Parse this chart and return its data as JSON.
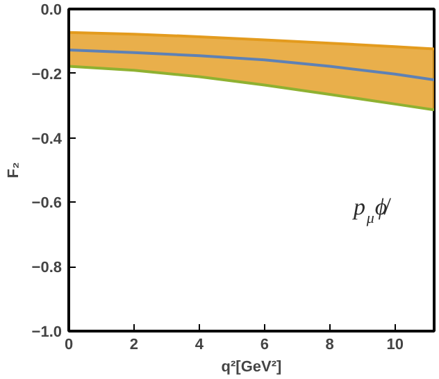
{
  "chart_data": {
    "type": "line",
    "xlabel": "q²[GeV²]",
    "ylabel": "F₂",
    "annotations": [
      "p$_{μ}$ϕ̸"
    ],
    "x": [
      0,
      2,
      4,
      6,
      8,
      10,
      11.2
    ],
    "series": [
      {
        "color": "#e39b1e",
        "values": [
          -0.073,
          -0.078,
          -0.086,
          -0.096,
          -0.106,
          -0.117,
          -0.124
        ]
      },
      {
        "color": "#5e81b5",
        "values": [
          -0.127,
          -0.135,
          -0.145,
          -0.158,
          -0.178,
          -0.202,
          -0.22
        ],
        "lower": [
          -0.178,
          -0.19,
          -0.21,
          -0.236,
          -0.265,
          -0.295,
          -0.313
        ],
        "upper": [
          -0.073,
          -0.078,
          -0.086,
          -0.096,
          -0.106,
          -0.117,
          -0.124
        ]
      },
      {
        "color": "#8fb131",
        "values": [
          -0.178,
          -0.19,
          -0.21,
          -0.236,
          -0.265,
          -0.295,
          -0.313
        ]
      }
    ],
    "xlim": [
      0,
      11.2
    ],
    "ylim": [
      -1.0,
      0.0
    ],
    "xticks": [
      0,
      2,
      4,
      6,
      8,
      10
    ],
    "yticks": [
      {
        "value": -1.0,
        "label": "−1.0"
      },
      {
        "value": -0.8,
        "label": "−0.8"
      },
      {
        "value": -0.6,
        "label": "−0.6"
      },
      {
        "value": -0.4,
        "label": "−0.4"
      },
      {
        "value": -0.2,
        "label": "−0.2"
      },
      {
        "value": 0.0,
        "label": "0.0"
      }
    ],
    "grid": false
  }
}
